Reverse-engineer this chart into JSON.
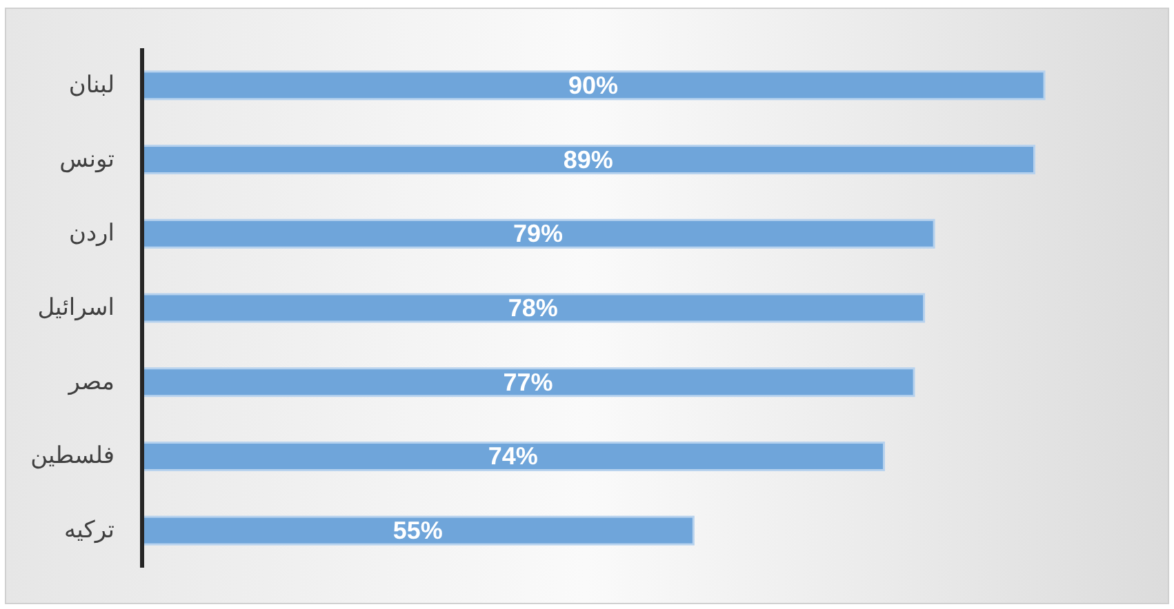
{
  "chart_data": {
    "type": "bar",
    "orientation": "horizontal",
    "categories": [
      "لبنان",
      "تونس",
      "اردن",
      "اسرائيل",
      "مصر",
      "فلسطين",
      "تركيه"
    ],
    "values": [
      90,
      89,
      79,
      78,
      77,
      74,
      55
    ],
    "value_labels": [
      "90%",
      "89%",
      "79%",
      "78%",
      "77%",
      "74%",
      "55%"
    ],
    "color": "#6fa5da"
  }
}
